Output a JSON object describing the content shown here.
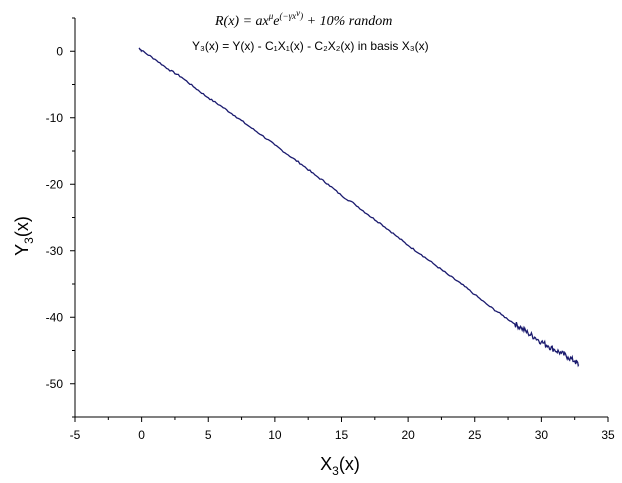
{
  "chart_data": {
    "type": "line",
    "title": {
      "pre": "R(x) = ax",
      "sup1": "μ",
      "mid": "e",
      "sup2": "(−γx",
      "sup3": "ν",
      "sup4": ")",
      "post": " + 10% random"
    },
    "subtitle": "Y₃(x) = Y(x) - C₁X₁(x) - C₂X₂(x) in basis  X₃(x)",
    "xlabel": {
      "main": "X",
      "sub": "3",
      "suffix": "(x)"
    },
    "ylabel": {
      "main": "Y",
      "sub": "3",
      "suffix": "(x)"
    },
    "xlim": [
      -5,
      35
    ],
    "ylim": [
      -55,
      5
    ],
    "xticks": [
      "-5",
      "0",
      "5",
      "10",
      "15",
      "20",
      "25",
      "30",
      "35"
    ],
    "yticks": [
      "0",
      "-10",
      "-20",
      "-30",
      "-40",
      "-50"
    ],
    "series_color": "#1a1a6e",
    "series": [
      {
        "x": [
          -0.2,
          0,
          1,
          2,
          3,
          4,
          5,
          6,
          7,
          8,
          9,
          10,
          11,
          12,
          13,
          14,
          15,
          16,
          17,
          18,
          19,
          20,
          21,
          22,
          23,
          24,
          25,
          26,
          27,
          28,
          28.5,
          29,
          29.5,
          30,
          30.5,
          31,
          31.5,
          32,
          32.5,
          32.8
        ],
        "y": [
          0.5,
          0.1,
          -1.2,
          -2.7,
          -3.9,
          -5.5,
          -7.0,
          -8.3,
          -9.7,
          -11.2,
          -12.6,
          -14.1,
          -15.6,
          -17.0,
          -18.6,
          -20.0,
          -21.7,
          -23.0,
          -24.6,
          -26.0,
          -27.6,
          -29.2,
          -30.6,
          -32.1,
          -33.6,
          -35.0,
          -36.6,
          -38.2,
          -39.6,
          -41.0,
          -41.6,
          -42.4,
          -43.0,
          -43.7,
          -44.3,
          -44.9,
          -45.4,
          -46.0,
          -46.6,
          -47.1
        ]
      }
    ]
  }
}
